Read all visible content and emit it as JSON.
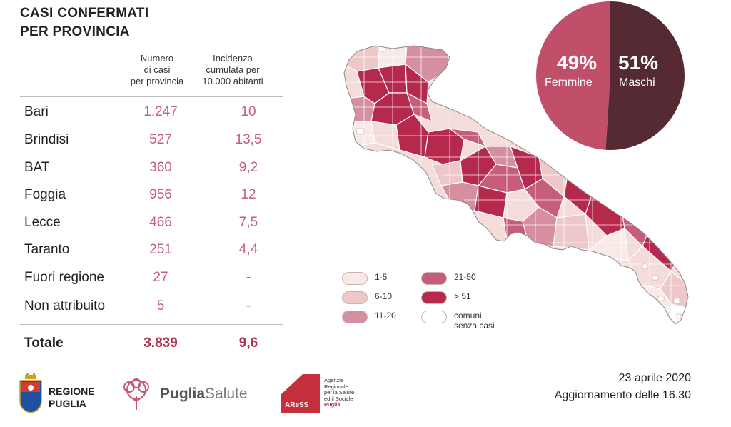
{
  "title_line1": "CASI CONFERMATI",
  "title_line2": "PER PROVINCIA",
  "table": {
    "header_cases": [
      "Numero",
      "di casi",
      "per provincia"
    ],
    "header_incidence": [
      "Incidenza",
      "cumulata per",
      "10.000 abitanti"
    ],
    "rows": [
      {
        "name": "Bari",
        "cases": "1.247",
        "incidence": "10"
      },
      {
        "name": "Brindisi",
        "cases": "527",
        "incidence": "13,5"
      },
      {
        "name": "BAT",
        "cases": "360",
        "incidence": "9,2"
      },
      {
        "name": "Foggia",
        "cases": "956",
        "incidence": "12"
      },
      {
        "name": "Lecce",
        "cases": "466",
        "incidence": "7,5"
      },
      {
        "name": "Taranto",
        "cases": "251",
        "incidence": "4,4"
      },
      {
        "name": "Fuori regione",
        "cases": "27",
        "incidence": "-"
      },
      {
        "name": "Non attribuito",
        "cases": "5",
        "incidence": "-"
      }
    ],
    "total": {
      "name": "Totale",
      "cases": "3.839",
      "incidence": "9,6"
    }
  },
  "chart_data": [
    {
      "type": "table",
      "title": "CASI CONFERMATI PER PROVINCIA",
      "columns": [
        "",
        "Numero di casi per provincia",
        "Incidenza cumulata per 10.000 abitanti"
      ],
      "categories": [
        "Bari",
        "Brindisi",
        "BAT",
        "Foggia",
        "Lecce",
        "Taranto",
        "Fuori regione",
        "Non attribuito",
        "Totale"
      ],
      "series": [
        {
          "name": "Numero di casi per provincia",
          "values": [
            1247,
            527,
            360,
            956,
            466,
            251,
            27,
            5,
            3839
          ]
        },
        {
          "name": "Incidenza cumulata per 10.000 abitanti",
          "values": [
            10,
            13.5,
            9.2,
            12,
            7.5,
            4.4,
            null,
            null,
            9.6
          ]
        }
      ]
    },
    {
      "type": "pie",
      "categories": [
        "Femmine",
        "Maschi"
      ],
      "values": [
        49,
        51
      ],
      "labels": [
        "49%",
        "51%"
      ],
      "colors": [
        "#c14f6a",
        "#552a33"
      ]
    }
  ],
  "map": {
    "legend": [
      {
        "label": "1-5",
        "color": "#f8ebe7"
      },
      {
        "label": "6-10",
        "color": "#eec8c8"
      },
      {
        "label": "11-20",
        "color": "#d58fa1"
      },
      {
        "label": "21-50",
        "color": "#c65d7b"
      },
      {
        "label": "> 51",
        "color": "#b5294d"
      },
      {
        "label": "comuni senza casi",
        "label_lines": [
          "comuni",
          "senza casi"
        ],
        "color": "#ffffff"
      }
    ]
  },
  "footer": {
    "date": "23 aprile 2020",
    "update": "Aggiornamento delle 16.30",
    "logo1": [
      "REGIONE",
      "PUGLIA"
    ],
    "logo2_a": "Puglia",
    "logo2_b": "Salute",
    "logo3_mark": "AReSS",
    "logo3_text": [
      "Agenzia",
      "Regionale",
      "per la Salute",
      "ed il Sociale",
      "Puglia"
    ]
  },
  "colors": {
    "accent": "#c4607b",
    "accent_dark": "#b03052",
    "female": "#c14f6a",
    "male": "#552a33"
  }
}
